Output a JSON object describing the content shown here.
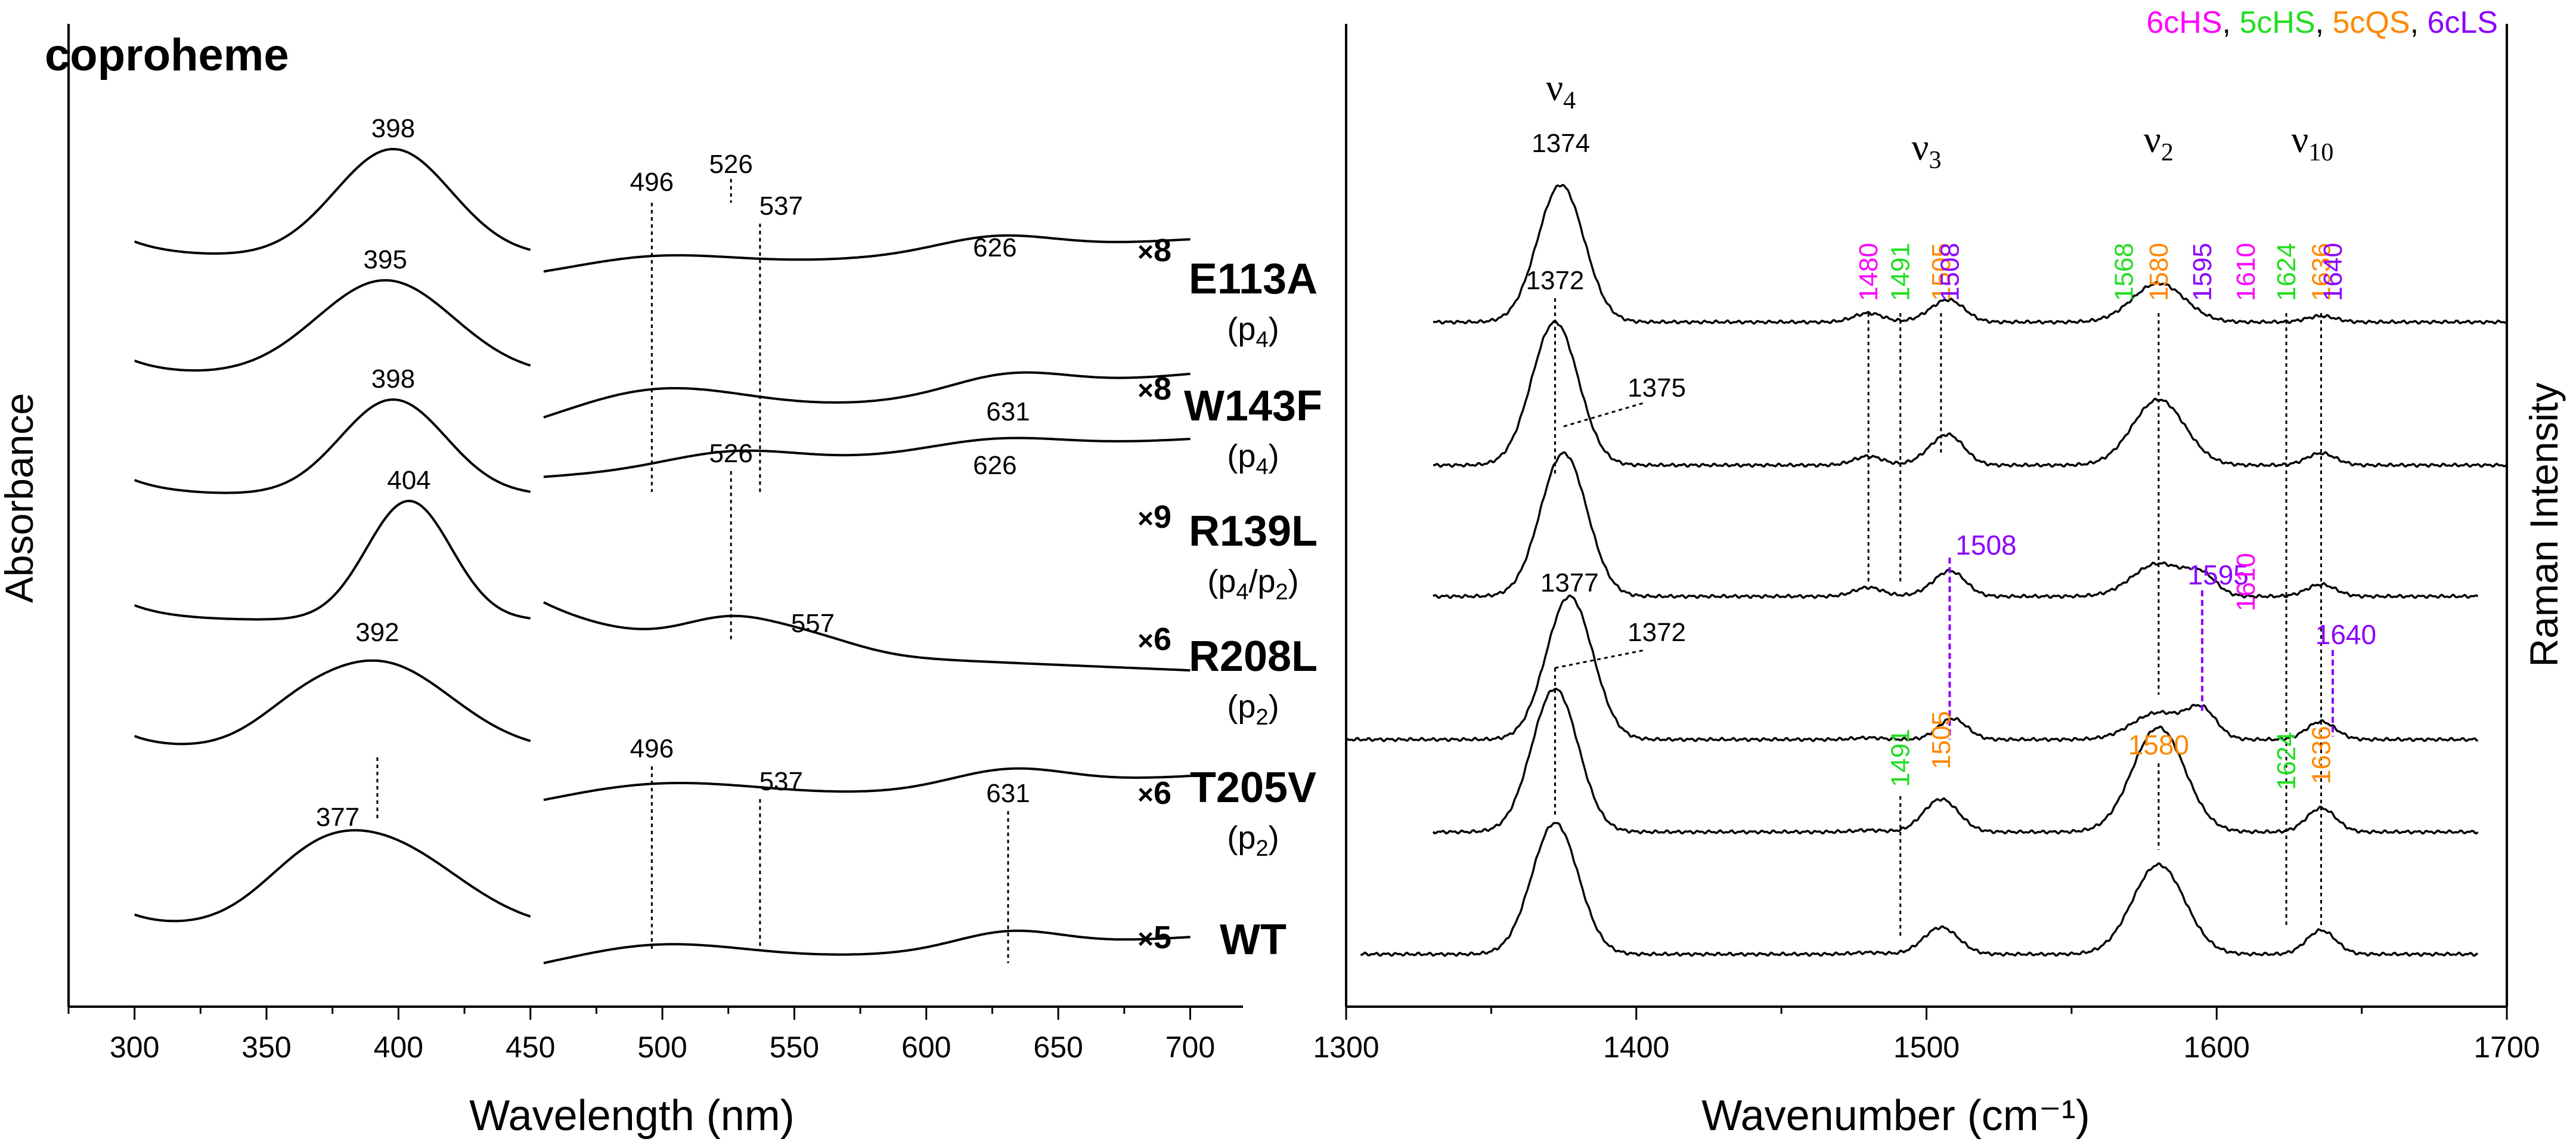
{
  "title": "coproheme",
  "legend": [
    {
      "label": "6cHS",
      "color": "#ff00ff"
    },
    {
      "label": "5cHS",
      "color": "#22dd22"
    },
    {
      "label": "5cQS",
      "color": "#ff8800"
    },
    {
      "label": "6cLS",
      "color": "#8b00ff"
    }
  ],
  "legend_sep": ", ",
  "colors": {
    "line": "#000000",
    "cHS6": "#ff00ff",
    "cHS5": "#22dd22",
    "cQS5": "#ff8800",
    "cLS6": "#8b00ff"
  },
  "samples": [
    {
      "name": "E113A",
      "popu": "p",
      "sub1": "4",
      "mid": "",
      "sub2": "",
      "mult_x": "×",
      "mult": "8"
    },
    {
      "name": "W143F",
      "popu": "p",
      "sub1": "4",
      "mid": "",
      "sub2": "",
      "mult_x": "×",
      "mult": "8"
    },
    {
      "name": "R139L",
      "popu": "p",
      "sub1": "4",
      "mid": "/p",
      "sub2": "2",
      "mult_x": "×",
      "mult": "9"
    },
    {
      "name": "R208L",
      "popu": "p",
      "sub1": "2",
      "mid": "",
      "sub2": "",
      "mult_x": "×",
      "mult": "6"
    },
    {
      "name": "T205V",
      "popu": "p",
      "sub1": "2",
      "mid": "",
      "sub2": "",
      "mult_x": "×",
      "mult": "6"
    },
    {
      "name": "WT",
      "popu": "",
      "sub1": "",
      "mid": "",
      "sub2": "",
      "mult_x": "×",
      "mult": "5"
    }
  ],
  "chart_data": [
    {
      "type": "line",
      "panel": "UV-vis absorbance",
      "title": "coproheme",
      "xlabel": "Wavelength (nm)",
      "ylabel": "Absorbance",
      "xlim": [
        275,
        720
      ],
      "xticks": [
        300,
        350,
        400,
        450,
        500,
        550,
        600,
        650,
        700
      ],
      "soret_peaks": [
        398,
        395,
        398,
        404,
        392,
        377
      ],
      "qband_labels": {
        "E113A": [
          496,
          526,
          537,
          626
        ],
        "W143F": [
          631
        ],
        "R139L": [
          526,
          626
        ],
        "R208L": [
          557
        ],
        "T205V": [
          496,
          537,
          631
        ]
      },
      "visible_multipliers": [
        8,
        8,
        9,
        6,
        6,
        5
      ],
      "marker_lines_nm": [
        392,
        496,
        526,
        537,
        631
      ]
    },
    {
      "type": "line",
      "panel": "Resonance Raman",
      "xlabel": "Wavenumber (cm⁻¹)",
      "ylabel": "Raman Intensity",
      "xlim": [
        1300,
        1700
      ],
      "xticks": [
        1300,
        1400,
        1500,
        1600,
        1700
      ],
      "mode_labels": [
        {
          "sym": "ν",
          "sub": "4",
          "x": 1374
        },
        {
          "sym": "ν",
          "sub": "3",
          "x": 1500
        },
        {
          "sym": "ν",
          "sub": "2",
          "x": 1580
        },
        {
          "sym": "ν",
          "sub": "10",
          "x": 1633
        }
      ],
      "band_labels": {
        "E113A": [
          {
            "x": 1374,
            "text": "1374",
            "state": "none"
          },
          {
            "x": 1480,
            "text": "1480",
            "state": "6cHS"
          },
          {
            "x": 1491,
            "text": "1491",
            "state": "5cHS"
          },
          {
            "x": 1505,
            "text": "1505",
            "state": "5cQS"
          },
          {
            "x": 1508,
            "text": "1508",
            "state": "6cLS"
          },
          {
            "x": 1568,
            "text": "1568",
            "state": "5cHS"
          },
          {
            "x": 1580,
            "text": "1580",
            "state": "5cQS"
          },
          {
            "x": 1595,
            "text": "1595",
            "state": "6cLS"
          },
          {
            "x": 1610,
            "text": "1610",
            "state": "6cHS"
          },
          {
            "x": 1624,
            "text": "1624",
            "state": "5cHS"
          },
          {
            "x": 1636,
            "text": "1636",
            "state": "5cQS"
          },
          {
            "x": 1640,
            "text": "1640",
            "state": "6cLS"
          }
        ],
        "W143F": [
          {
            "x": 1372,
            "text": "1372"
          },
          {
            "x": 1375,
            "text": "1375"
          }
        ],
        "R139L": [
          {
            "x": 1508,
            "text": "1508",
            "state": "6cLS"
          },
          {
            "x": 1595,
            "text": "1595",
            "state": "6cLS"
          },
          {
            "x": 1610,
            "text": "1610",
            "state": "6cHS"
          },
          {
            "x": 1640,
            "text": "1640",
            "state": "6cLS"
          }
        ],
        "R208L": [
          {
            "x": 1377,
            "text": "1377"
          },
          {
            "x": 1372,
            "text": "1372"
          }
        ],
        "T205V": [
          {
            "x": 1491,
            "text": "1491",
            "state": "5cHS"
          },
          {
            "x": 1505,
            "text": "1505",
            "state": "5cQS"
          },
          {
            "x": 1580,
            "text": "1580",
            "state": "5cQS"
          },
          {
            "x": 1624,
            "text": "1624",
            "state": "5cHS"
          },
          {
            "x": 1636,
            "text": "1636",
            "state": "5cQS"
          }
        ]
      },
      "v4_peak_positions": [
        1374,
        1372,
        1375,
        1377,
        1372,
        1372
      ]
    }
  ]
}
